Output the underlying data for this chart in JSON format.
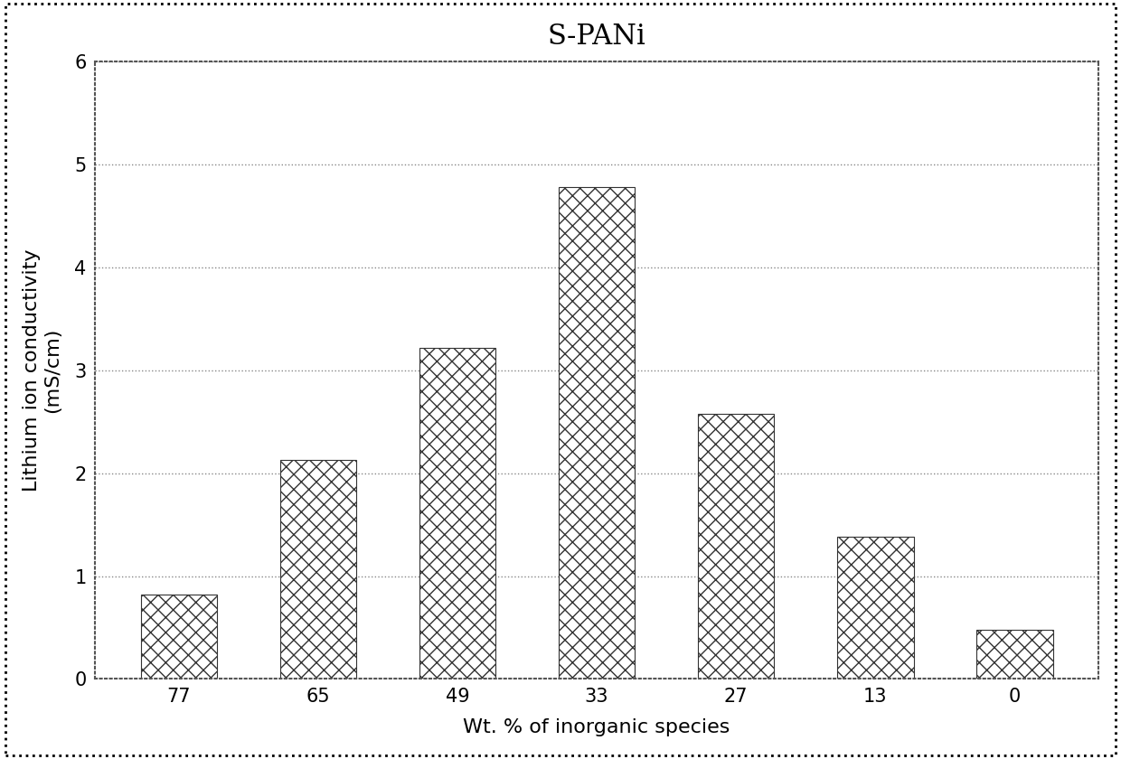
{
  "title": "S-PANi",
  "categories": [
    "77",
    "65",
    "49",
    "33",
    "27",
    "13",
    "0"
  ],
  "values": [
    0.82,
    2.13,
    3.22,
    4.78,
    2.58,
    1.38,
    0.48
  ],
  "xlabel": "Wt. % of inorganic species",
  "ylabel": "Lithium ion conductivity\n(mS/cm)",
  "ylim": [
    0,
    6
  ],
  "yticks": [
    0,
    1,
    2,
    3,
    4,
    5,
    6
  ],
  "bar_color": "white",
  "bar_hatch": "xx",
  "bar_edgecolor": "#333333",
  "background_color": "#ffffff",
  "title_fontsize": 22,
  "label_fontsize": 16,
  "tick_fontsize": 15,
  "grid_color": "#888888",
  "grid_linestyle": ":"
}
